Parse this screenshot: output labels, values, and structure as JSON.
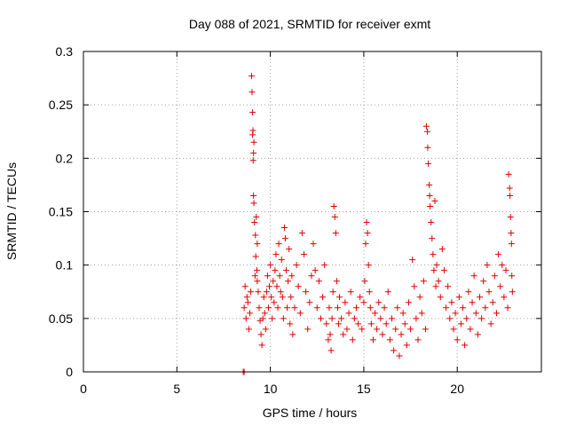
{
  "chart_data": {
    "type": "scatter",
    "title": "Day 088 of 2021, SRMTID for receiver exmt",
    "xlabel": "GPS time / hours",
    "ylabel": "SRMTID / TECUs",
    "xlim": [
      0,
      24.5
    ],
    "ylim": [
      0,
      0.3
    ],
    "x_ticks": [
      0,
      5,
      10,
      15,
      20
    ],
    "x_tick_labels": [
      "0",
      "5",
      "10",
      "15",
      "20"
    ],
    "y_ticks": [
      0,
      0.05,
      0.1,
      0.15,
      0.2,
      0.25,
      0.3
    ],
    "y_tick_labels": [
      "0",
      "0.05",
      "0.1",
      "0.15",
      "0.2",
      "0.25",
      "0.3"
    ],
    "grid": true,
    "marker": "+",
    "marker_color": "#e00000",
    "series": [
      {
        "name": "SRMTID",
        "points": [
          [
            8.55,
            0.0
          ],
          [
            8.6,
            0.0
          ],
          [
            8.6,
            0.06
          ],
          [
            8.65,
            0.08
          ],
          [
            8.7,
            0.05
          ],
          [
            8.75,
            0.07
          ],
          [
            8.8,
            0.065
          ],
          [
            8.85,
            0.04
          ],
          [
            8.9,
            0.055
          ],
          [
            8.95,
            0.075
          ],
          [
            9.0,
            0.277
          ],
          [
            9.02,
            0.262
          ],
          [
            9.05,
            0.243
          ],
          [
            9.07,
            0.226
          ],
          [
            9.05,
            0.222
          ],
          [
            9.1,
            0.205
          ],
          [
            9.08,
            0.198
          ],
          [
            9.12,
            0.215
          ],
          [
            9.1,
            0.165
          ],
          [
            9.12,
            0.158
          ],
          [
            9.15,
            0.14
          ],
          [
            9.2,
            0.128
          ],
          [
            9.25,
            0.145
          ],
          [
            9.3,
            0.12
          ],
          [
            9.22,
            0.108
          ],
          [
            9.28,
            0.095
          ],
          [
            9.18,
            0.09
          ],
          [
            9.3,
            0.085
          ],
          [
            9.35,
            0.075
          ],
          [
            9.4,
            0.06
          ],
          [
            9.45,
            0.048
          ],
          [
            9.5,
            0.035
          ],
          [
            9.55,
            0.025
          ],
          [
            9.6,
            0.05
          ],
          [
            9.65,
            0.07
          ],
          [
            9.7,
            0.055
          ],
          [
            9.75,
            0.04
          ],
          [
            9.8,
            0.075
          ],
          [
            9.85,
            0.09
          ],
          [
            9.9,
            0.06
          ],
          [
            9.95,
            0.08
          ],
          [
            10.0,
            0.1
          ],
          [
            10.05,
            0.07
          ],
          [
            10.1,
            0.05
          ],
          [
            10.15,
            0.085
          ],
          [
            10.2,
            0.065
          ],
          [
            10.25,
            0.095
          ],
          [
            10.3,
            0.11
          ],
          [
            10.35,
            0.08
          ],
          [
            10.4,
            0.06
          ],
          [
            10.45,
            0.12
          ],
          [
            10.5,
            0.09
          ],
          [
            10.55,
            0.075
          ],
          [
            10.6,
            0.105
          ],
          [
            10.65,
            0.07
          ],
          [
            10.7,
            0.05
          ],
          [
            10.75,
            0.135
          ],
          [
            10.8,
            0.125
          ],
          [
            10.85,
            0.095
          ],
          [
            10.9,
            0.06
          ],
          [
            10.95,
            0.085
          ],
          [
            11.0,
            0.115
          ],
          [
            11.05,
            0.045
          ],
          [
            11.1,
            0.07
          ],
          [
            11.15,
            0.09
          ],
          [
            11.2,
            0.035
          ],
          [
            11.3,
            0.06
          ],
          [
            11.4,
            0.1
          ],
          [
            11.5,
            0.08
          ],
          [
            11.6,
            0.055
          ],
          [
            11.7,
            0.13
          ],
          [
            11.8,
            0.11
          ],
          [
            11.9,
            0.075
          ],
          [
            12.0,
            0.04
          ],
          [
            12.1,
            0.065
          ],
          [
            12.2,
            0.09
          ],
          [
            12.3,
            0.12
          ],
          [
            12.4,
            0.095
          ],
          [
            12.5,
            0.06
          ],
          [
            12.6,
            0.085
          ],
          [
            12.7,
            0.05
          ],
          [
            12.8,
            0.07
          ],
          [
            12.9,
            0.1
          ],
          [
            13.0,
            0.045
          ],
          [
            13.1,
            0.03
          ],
          [
            13.15,
            0.06
          ],
          [
            13.2,
            0.035
          ],
          [
            13.25,
            0.02
          ],
          [
            13.3,
            0.05
          ],
          [
            13.35,
            0.075
          ],
          [
            13.4,
            0.155
          ],
          [
            13.45,
            0.145
          ],
          [
            13.5,
            0.13
          ],
          [
            13.55,
            0.085
          ],
          [
            13.6,
            0.06
          ],
          [
            13.65,
            0.045
          ],
          [
            13.7,
            0.07
          ],
          [
            13.8,
            0.05
          ],
          [
            13.9,
            0.035
          ],
          [
            14.0,
            0.065
          ],
          [
            14.1,
            0.04
          ],
          [
            14.2,
            0.055
          ],
          [
            14.3,
            0.075
          ],
          [
            14.4,
            0.03
          ],
          [
            14.5,
            0.05
          ],
          [
            14.6,
            0.06
          ],
          [
            14.7,
            0.045
          ],
          [
            14.8,
            0.07
          ],
          [
            14.9,
            0.04
          ],
          [
            15.0,
            0.065
          ],
          [
            15.05,
            0.085
          ],
          [
            15.1,
            0.12
          ],
          [
            15.15,
            0.14
          ],
          [
            15.2,
            0.13
          ],
          [
            15.25,
            0.1
          ],
          [
            15.3,
            0.075
          ],
          [
            15.35,
            0.06
          ],
          [
            15.4,
            0.045
          ],
          [
            15.5,
            0.03
          ],
          [
            15.6,
            0.055
          ],
          [
            15.7,
            0.04
          ],
          [
            15.8,
            0.065
          ],
          [
            15.9,
            0.05
          ],
          [
            16.0,
            0.035
          ],
          [
            16.1,
            0.06
          ],
          [
            16.2,
            0.045
          ],
          [
            16.3,
            0.075
          ],
          [
            16.4,
            0.03
          ],
          [
            16.5,
            0.05
          ],
          [
            16.6,
            0.02
          ],
          [
            16.7,
            0.04
          ],
          [
            16.8,
            0.06
          ],
          [
            16.9,
            0.015
          ],
          [
            17.0,
            0.035
          ],
          [
            17.1,
            0.055
          ],
          [
            17.2,
            0.045
          ],
          [
            17.3,
            0.025
          ],
          [
            17.4,
            0.065
          ],
          [
            17.5,
            0.04
          ],
          [
            17.6,
            0.105
          ],
          [
            17.7,
            0.08
          ],
          [
            17.8,
            0.05
          ],
          [
            17.9,
            0.03
          ],
          [
            18.0,
            0.07
          ],
          [
            18.1,
            0.055
          ],
          [
            18.2,
            0.085
          ],
          [
            18.3,
            0.04
          ],
          [
            18.35,
            0.23
          ],
          [
            18.4,
            0.225
          ],
          [
            18.42,
            0.21
          ],
          [
            18.45,
            0.195
          ],
          [
            18.5,
            0.175
          ],
          [
            18.52,
            0.165
          ],
          [
            18.55,
            0.155
          ],
          [
            18.6,
            0.14
          ],
          [
            18.65,
            0.125
          ],
          [
            18.7,
            0.11
          ],
          [
            18.75,
            0.095
          ],
          [
            18.8,
            0.16
          ],
          [
            18.85,
            0.08
          ],
          [
            18.9,
            0.1
          ],
          [
            19.0,
            0.085
          ],
          [
            19.1,
            0.07
          ],
          [
            19.2,
            0.115
          ],
          [
            19.3,
            0.095
          ],
          [
            19.4,
            0.06
          ],
          [
            19.5,
            0.08
          ],
          [
            19.6,
            0.05
          ],
          [
            19.7,
            0.065
          ],
          [
            19.8,
            0.04
          ],
          [
            19.9,
            0.055
          ],
          [
            20.0,
            0.03
          ],
          [
            20.1,
            0.07
          ],
          [
            20.2,
            0.045
          ],
          [
            20.3,
            0.06
          ],
          [
            20.4,
            0.025
          ],
          [
            20.5,
            0.05
          ],
          [
            20.6,
            0.075
          ],
          [
            20.7,
            0.04
          ],
          [
            20.8,
            0.065
          ],
          [
            20.9,
            0.09
          ],
          [
            21.0,
            0.055
          ],
          [
            21.1,
            0.035
          ],
          [
            21.2,
            0.07
          ],
          [
            21.3,
            0.05
          ],
          [
            21.4,
            0.085
          ],
          [
            21.5,
            0.06
          ],
          [
            21.6,
            0.1
          ],
          [
            21.7,
            0.075
          ],
          [
            21.8,
            0.045
          ],
          [
            21.9,
            0.065
          ],
          [
            22.0,
            0.09
          ],
          [
            22.1,
            0.055
          ],
          [
            22.2,
            0.11
          ],
          [
            22.3,
            0.08
          ],
          [
            22.4,
            0.1
          ],
          [
            22.5,
            0.07
          ],
          [
            22.6,
            0.095
          ],
          [
            22.7,
            0.06
          ],
          [
            22.75,
            0.185
          ],
          [
            22.8,
            0.172
          ],
          [
            22.82,
            0.165
          ],
          [
            22.85,
            0.145
          ],
          [
            22.88,
            0.13
          ],
          [
            22.9,
            0.12
          ],
          [
            22.92,
            0.09
          ],
          [
            22.95,
            0.075
          ]
        ]
      }
    ]
  }
}
